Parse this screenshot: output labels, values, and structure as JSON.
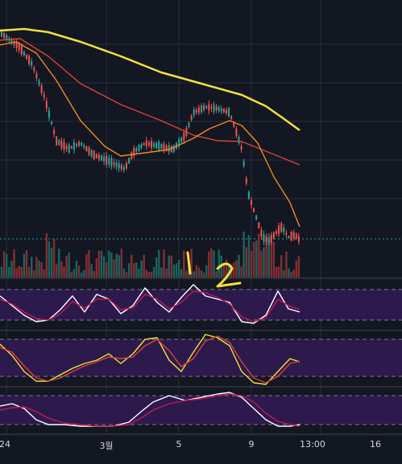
{
  "chart_data": {
    "type": "line",
    "title": "",
    "xlabel": "",
    "ylabel": "",
    "grid": true,
    "x_tick_labels": [
      "24",
      "3월",
      "5",
      "9",
      "13:00",
      "16"
    ],
    "series": [
      {
        "key": "ma_yellow",
        "color": "#f5e13a",
        "values": [
          [
            0,
            38
          ],
          [
            30,
            36
          ],
          [
            60,
            40
          ],
          [
            100,
            52
          ],
          [
            150,
            70
          ],
          [
            200,
            90
          ],
          [
            250,
            104
          ],
          [
            300,
            118
          ],
          [
            330,
            132
          ],
          [
            350,
            146
          ],
          [
            372,
            162
          ]
        ]
      },
      {
        "key": "ma_red",
        "color": "#d9433a",
        "values": [
          [
            0,
            50
          ],
          [
            25,
            48
          ],
          [
            60,
            70
          ],
          [
            100,
            104
          ],
          [
            150,
            130
          ],
          [
            200,
            150
          ],
          [
            240,
            168
          ],
          [
            270,
            175
          ],
          [
            300,
            176
          ],
          [
            330,
            188
          ],
          [
            372,
            205
          ]
        ]
      },
      {
        "key": "ma_orange",
        "color": "#f08a1e",
        "values": [
          [
            0,
            56
          ],
          [
            20,
            52
          ],
          [
            45,
            66
          ],
          [
            70,
            100
          ],
          [
            100,
            150
          ],
          [
            130,
            182
          ],
          [
            150,
            194
          ],
          [
            180,
            190
          ],
          [
            210,
            186
          ],
          [
            240,
            172
          ],
          [
            260,
            160
          ],
          [
            285,
            150
          ],
          [
            300,
            156
          ],
          [
            320,
            178
          ],
          [
            340,
            220
          ],
          [
            360,
            252
          ],
          [
            372,
            282
          ]
        ]
      },
      {
        "key": "osc1_k",
        "color": "#ffffff",
        "values": [
          [
            0,
            368
          ],
          [
            15,
            380
          ],
          [
            30,
            392
          ],
          [
            45,
            400
          ],
          [
            60,
            398
          ],
          [
            75,
            385
          ],
          [
            90,
            368
          ],
          [
            105,
            388
          ],
          [
            120,
            366
          ],
          [
            135,
            372
          ],
          [
            150,
            390
          ],
          [
            165,
            380
          ],
          [
            180,
            358
          ],
          [
            195,
            376
          ],
          [
            210,
            388
          ],
          [
            225,
            370
          ],
          [
            240,
            354
          ],
          [
            255,
            368
          ],
          [
            270,
            372
          ],
          [
            285,
            376
          ],
          [
            300,
            400
          ],
          [
            315,
            402
          ],
          [
            330,
            392
          ],
          [
            345,
            362
          ],
          [
            358,
            384
          ],
          [
            372,
            388
          ]
        ]
      },
      {
        "key": "osc1_d",
        "color": "#c2185b",
        "values": [
          [
            0,
            372
          ],
          [
            15,
            378
          ],
          [
            30,
            388
          ],
          [
            45,
            396
          ],
          [
            60,
            398
          ],
          [
            75,
            390
          ],
          [
            90,
            375
          ],
          [
            105,
            383
          ],
          [
            120,
            372
          ],
          [
            135,
            372
          ],
          [
            150,
            385
          ],
          [
            165,
            383
          ],
          [
            180,
            366
          ],
          [
            195,
            372
          ],
          [
            210,
            384
          ],
          [
            225,
            376
          ],
          [
            240,
            362
          ],
          [
            255,
            364
          ],
          [
            270,
            370
          ],
          [
            285,
            378
          ],
          [
            300,
            394
          ],
          [
            315,
            400
          ],
          [
            330,
            395
          ],
          [
            345,
            372
          ],
          [
            358,
            380
          ],
          [
            372,
            385
          ]
        ]
      },
      {
        "key": "osc2_k",
        "color": "#f5e13a",
        "values": [
          [
            0,
            428
          ],
          [
            15,
            442
          ],
          [
            30,
            462
          ],
          [
            45,
            474
          ],
          [
            60,
            474
          ],
          [
            75,
            466
          ],
          [
            90,
            458
          ],
          [
            105,
            452
          ],
          [
            120,
            448
          ],
          [
            135,
            440
          ],
          [
            150,
            452
          ],
          [
            165,
            440
          ],
          [
            180,
            422
          ],
          [
            195,
            420
          ],
          [
            210,
            448
          ],
          [
            225,
            462
          ],
          [
            240,
            438
          ],
          [
            255,
            416
          ],
          [
            270,
            420
          ],
          [
            285,
            430
          ],
          [
            300,
            462
          ],
          [
            315,
            476
          ],
          [
            330,
            478
          ],
          [
            345,
            462
          ],
          [
            360,
            446
          ],
          [
            372,
            450
          ]
        ]
      },
      {
        "key": "osc2_d",
        "color": "#d9433a",
        "values": [
          [
            0,
            432
          ],
          [
            15,
            438
          ],
          [
            30,
            455
          ],
          [
            45,
            470
          ],
          [
            60,
            474
          ],
          [
            75,
            470
          ],
          [
            90,
            462
          ],
          [
            105,
            455
          ],
          [
            120,
            450
          ],
          [
            135,
            444
          ],
          [
            150,
            446
          ],
          [
            165,
            444
          ],
          [
            180,
            430
          ],
          [
            195,
            422
          ],
          [
            210,
            436
          ],
          [
            225,
            456
          ],
          [
            240,
            446
          ],
          [
            255,
            424
          ],
          [
            270,
            418
          ],
          [
            285,
            426
          ],
          [
            300,
            450
          ],
          [
            315,
            470
          ],
          [
            330,
            476
          ],
          [
            345,
            468
          ],
          [
            360,
            452
          ],
          [
            372,
            449
          ]
        ]
      },
      {
        "key": "osc3_k",
        "color": "#ffffff",
        "values": [
          [
            0,
            505
          ],
          [
            15,
            502
          ],
          [
            30,
            508
          ],
          [
            45,
            522
          ],
          [
            60,
            528
          ],
          [
            80,
            528
          ],
          [
            100,
            530
          ],
          [
            120,
            530
          ],
          [
            140,
            530
          ],
          [
            160,
            525
          ],
          [
            175,
            512
          ],
          [
            190,
            500
          ],
          [
            210,
            492
          ],
          [
            230,
            498
          ],
          [
            250,
            494
          ],
          [
            270,
            490
          ],
          [
            285,
            488
          ],
          [
            300,
            494
          ],
          [
            315,
            508
          ],
          [
            330,
            522
          ],
          [
            345,
            530
          ],
          [
            360,
            530
          ],
          [
            372,
            528
          ]
        ]
      },
      {
        "key": "osc3_d",
        "color": "#c2185b",
        "values": [
          [
            0,
            510
          ],
          [
            15,
            507
          ],
          [
            30,
            506
          ],
          [
            45,
            512
          ],
          [
            60,
            520
          ],
          [
            80,
            526
          ],
          [
            100,
            528
          ],
          [
            120,
            530
          ],
          [
            140,
            530
          ],
          [
            160,
            528
          ],
          [
            175,
            520
          ],
          [
            190,
            510
          ],
          [
            210,
            502
          ],
          [
            230,
            498
          ],
          [
            250,
            496
          ],
          [
            270,
            492
          ],
          [
            285,
            490
          ],
          [
            300,
            492
          ],
          [
            315,
            500
          ],
          [
            330,
            514
          ],
          [
            345,
            524
          ],
          [
            360,
            528
          ],
          [
            372,
            530
          ]
        ]
      }
    ],
    "price_line_y": 297
  }
}
